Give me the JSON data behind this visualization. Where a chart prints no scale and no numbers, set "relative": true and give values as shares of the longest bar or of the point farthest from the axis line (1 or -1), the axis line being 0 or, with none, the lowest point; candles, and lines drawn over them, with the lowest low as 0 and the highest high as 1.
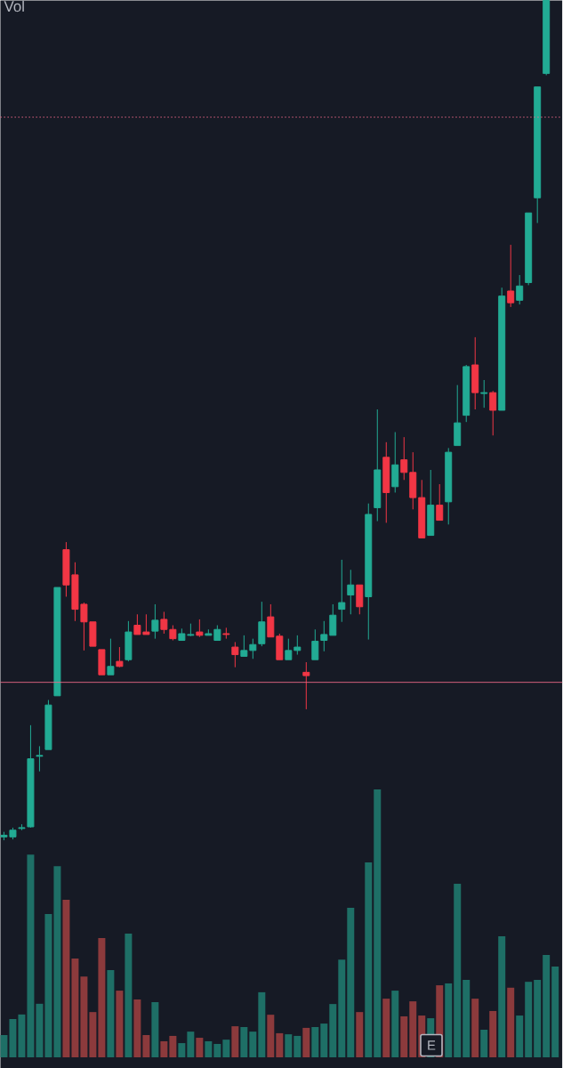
{
  "chart_data": [
    {
      "type": "candlestick",
      "relative": true,
      "annotations": [
        "Vol"
      ],
      "categories": [
        null,
        null,
        null,
        null,
        null,
        null,
        null,
        null,
        null,
        null,
        null,
        null,
        null,
        null,
        null,
        null,
        null,
        null,
        null,
        null,
        null,
        null,
        null,
        null,
        null,
        null,
        null,
        null,
        null,
        null,
        null,
        null,
        null,
        null,
        null,
        null,
        null,
        null,
        null,
        null,
        null,
        null,
        null,
        null,
        null,
        null,
        null,
        null,
        null,
        null,
        null,
        null,
        null,
        null,
        null,
        null,
        null,
        null,
        null,
        null,
        null,
        null
      ],
      "ohlc": [
        [
          0.004,
          0.01,
          0,
          0.006
        ],
        [
          0.004,
          0.015,
          0.001,
          0.012
        ],
        [
          0.014,
          0.019,
          0.012,
          0.015
        ],
        [
          0.016,
          0.137,
          0.015,
          0.097
        ],
        [
          0.1,
          0.112,
          0.082,
          0.101
        ],
        [
          0.108,
          0.167,
          0.108,
          0.161
        ],
        [
          0.172,
          0.301,
          0.172,
          0.301
        ],
        [
          0.346,
          0.355,
          0.29,
          0.304
        ],
        [
          0.316,
          0.331,
          0.261,
          0.275
        ],
        [
          0.281,
          0.283,
          0.226,
          0.26
        ],
        [
          0.26,
          0.26,
          0.231,
          0.231
        ],
        [
          0.227,
          0.227,
          0.197,
          0.197
        ],
        [
          0.197,
          0.24,
          0.197,
          0.207
        ],
        [
          0.213,
          0.23,
          0.206,
          0.207
        ],
        [
          0.215,
          0.261,
          0.213,
          0.248
        ],
        [
          0.256,
          0.269,
          0.245,
          0.245
        ],
        [
          0.248,
          0.269,
          0.245,
          0.245
        ],
        [
          0.249,
          0.281,
          0.24,
          0.262
        ],
        [
          0.263,
          0.272,
          0.246,
          0.251
        ],
        [
          0.251,
          0.256,
          0.238,
          0.24
        ],
        [
          0.238,
          0.252,
          0.238,
          0.246
        ],
        [
          0.244,
          0.258,
          0.243,
          0.245
        ],
        [
          0.248,
          0.263,
          0.242,
          0.244
        ],
        [
          0.244,
          0.251,
          0.244,
          0.246
        ],
        [
          0.238,
          0.256,
          0.238,
          0.251
        ],
        [
          0.246,
          0.253,
          0.24,
          0.245
        ],
        [
          0.23,
          0.236,
          0.206,
          0.221
        ],
        [
          0.219,
          0.244,
          0.219,
          0.226
        ],
        [
          0.226,
          0.24,
          0.216,
          0.233
        ],
        [
          0.234,
          0.284,
          0.231,
          0.26
        ],
        [
          0.266,
          0.281,
          0.242,
          0.242
        ],
        [
          0.243,
          0.246,
          0.215,
          0.215
        ],
        [
          0.215,
          0.24,
          0.215,
          0.226
        ],
        [
          0.226,
          0.244,
          0.221,
          0.23
        ],
        [
          0.2,
          0.212,
          0.156,
          0.196
        ],
        [
          0.215,
          0.251,
          0.215,
          0.237
        ],
        [
          0.238,
          0.261,
          0.225,
          0.245
        ],
        [
          0.244,
          0.281,
          0.244,
          0.268
        ],
        [
          0.275,
          0.334,
          0.26,
          0.283
        ],
        [
          0.292,
          0.322,
          0.269,
          0.304
        ],
        [
          0.304,
          0.304,
          0.269,
          0.278
        ],
        [
          0.29,
          0.401,
          0.239,
          0.388
        ],
        [
          0.396,
          0.513,
          0.38,
          0.441
        ],
        [
          0.456,
          0.474,
          0.378,
          0.414
        ],
        [
          0.421,
          0.486,
          0.414,
          0.447
        ],
        [
          0.453,
          0.48,
          0.429,
          0.438
        ],
        [
          0.438,
          0.462,
          0.394,
          0.408
        ],
        [
          0.408,
          0.429,
          0.36,
          0.36
        ],
        [
          0.363,
          0.441,
          0.363,
          0.399
        ],
        [
          0.399,
          0.424,
          0.381,
          0.381
        ],
        [
          0.403,
          0.467,
          0.376,
          0.462
        ],
        [
          0.47,
          0.542,
          0.47,
          0.497
        ],
        [
          0.506,
          0.566,
          0.498,
          0.564
        ],
        [
          0.566,
          0.599,
          0.513,
          0.533
        ],
        [
          0.532,
          0.548,
          0.515,
          0.533
        ],
        [
          0.533,
          0.535,
          0.482,
          0.512
        ],
        [
          0.512,
          0.658,
          0.512,
          0.648
        ],
        [
          0.654,
          0.709,
          0.635,
          0.64
        ],
        [
          0.643,
          0.673,
          0.638,
          0.66
        ],
        [
          0.664,
          0.747,
          0.661,
          0.747
        ],
        [
          0.765,
          0.897,
          0.735,
          0.897
        ],
        [
          0.913,
          1,
          0.911,
          1
        ]
      ],
      "colors": [
        "#22ab94",
        "#22ab94",
        "#22ab94",
        "#22ab94",
        "#22ab94",
        "#22ab94",
        "#22ab94",
        "#f23645",
        "#f23645",
        "#f23645",
        "#f23645",
        "#f23645",
        "#22ab94",
        "#f23645",
        "#22ab94",
        "#f23645",
        "#f23645",
        "#22ab94",
        "#f23645",
        "#f23645",
        "#22ab94",
        "#22ab94",
        "#f23645",
        "#22ab94",
        "#22ab94",
        "#f23645",
        "#f23645",
        "#22ab94",
        "#22ab94",
        "#22ab94",
        "#f23645",
        "#f23645",
        "#22ab94",
        "#22ab94",
        "#f23645",
        "#22ab94",
        "#22ab94",
        "#22ab94",
        "#22ab94",
        "#22ab94",
        "#f23645",
        "#22ab94",
        "#22ab94",
        "#f23645",
        "#22ab94",
        "#f23645",
        "#f23645",
        "#f23645",
        "#22ab94",
        "#f23645",
        "#22ab94",
        "#22ab94",
        "#22ab94",
        "#f23645",
        "#22ab94",
        "#f23645",
        "#22ab94",
        "#f23645",
        "#22ab94",
        "#22ab94",
        "#22ab94",
        "#22ab94"
      ],
      "ref_lines": [
        {
          "axis": "y",
          "value": 0.188,
          "color": "#f06a8a"
        },
        {
          "axis": "y",
          "value": 0.861,
          "color": "#f06a8a",
          "line_style": "dotted"
        }
      ]
    },
    {
      "type": "bar",
      "relative": true,
      "annotations": [
        "E"
      ],
      "categories": [
        null,
        null,
        null,
        null,
        null,
        null,
        null,
        null,
        null,
        null,
        null,
        null,
        null,
        null,
        null,
        null,
        null,
        null,
        null,
        null,
        null,
        null,
        null,
        null,
        null,
        null,
        null,
        null,
        null,
        null,
        null,
        null,
        null,
        null,
        null,
        null,
        null,
        null,
        null,
        null,
        null,
        null,
        null,
        null,
        null,
        null,
        null,
        null,
        null,
        null,
        null,
        null,
        null,
        null,
        null,
        null,
        null,
        null,
        null,
        null,
        null,
        null,
        null
      ],
      "values": [
        0.083,
        0.143,
        0.16,
        0.757,
        0.2,
        0.535,
        0.714,
        0.588,
        0.369,
        0.302,
        0.169,
        0.445,
        0.326,
        0.249,
        0.462,
        0.216,
        0.083,
        0.206,
        0.06,
        0.08,
        0.053,
        0.096,
        0.073,
        0.06,
        0.05,
        0.066,
        0.116,
        0.113,
        0.096,
        0.243,
        0.159,
        0.09,
        0.086,
        0.08,
        0.11,
        0.113,
        0.126,
        0.199,
        0.365,
        0.558,
        0.169,
        0.728,
        1,
        0.219,
        0.249,
        0.153,
        0.209,
        0.156,
        0.146,
        0.269,
        0.276,
        0.648,
        0.289,
        0.219,
        0.103,
        0.173,
        0.452,
        0.26,
        0.156,
        0.282,
        0.289,
        0.382,
        0.339
      ],
      "colors": [
        "#1e6f66",
        "#1e6f66",
        "#1e6f66",
        "#1e6f66",
        "#1e6f66",
        "#1e6f66",
        "#1e6f66",
        "#8c3a3c",
        "#8c3a3c",
        "#8c3a3c",
        "#8c3a3c",
        "#8c3a3c",
        "#1e6f66",
        "#8c3a3c",
        "#1e6f66",
        "#8c3a3c",
        "#8c3a3c",
        "#1e6f66",
        "#8c3a3c",
        "#8c3a3c",
        "#1e6f66",
        "#1e6f66",
        "#8c3a3c",
        "#1e6f66",
        "#1e6f66",
        "#1e6f66",
        "#8c3a3c",
        "#1e6f66",
        "#1e6f66",
        "#1e6f66",
        "#8c3a3c",
        "#8c3a3c",
        "#1e6f66",
        "#1e6f66",
        "#8c3a3c",
        "#1e6f66",
        "#1e6f66",
        "#1e6f66",
        "#1e6f66",
        "#1e6f66",
        "#8c3a3c",
        "#1e6f66",
        "#1e6f66",
        "#8c3a3c",
        "#1e6f66",
        "#8c3a3c",
        "#8c3a3c",
        "#8c3a3c",
        "#1e6f66",
        "#8c3a3c",
        "#1e6f66",
        "#1e6f66",
        "#1e6f66",
        "#8c3a3c",
        "#1e6f66",
        "#8c3a3c",
        "#1e6f66",
        "#8c3a3c",
        "#1e6f66",
        "#1e6f66",
        "#1e6f66",
        "#1e6f66",
        "#1e6f66"
      ]
    }
  ]
}
